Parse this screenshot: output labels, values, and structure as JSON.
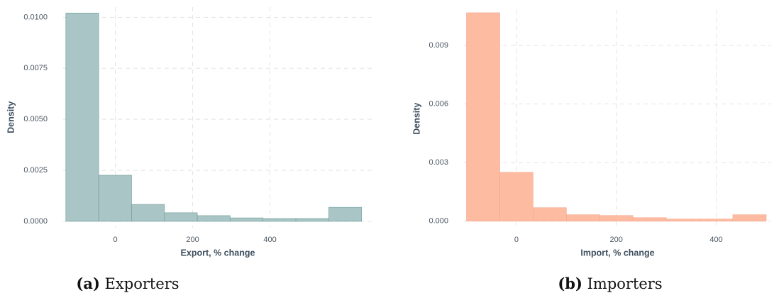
{
  "chart_data": [
    {
      "type": "histogram",
      "label": "(a)",
      "caption": "Exporters",
      "x_label": "Export, % change",
      "y_label": "Density",
      "bins": [
        -128,
        -43,
        42,
        127,
        212,
        297,
        382,
        467,
        552,
        637
      ],
      "values": [
        0.01021,
        0.00226,
        0.00083,
        0.00042,
        0.00028,
        0.00017,
        0.00014,
        0.00014,
        0.00069
      ],
      "color": "#a9c5c5",
      "edge_color": "#6f9a9a",
      "xlim": [
        -135,
        665
      ],
      "xticks": [
        0,
        200,
        400
      ],
      "ylim": [
        -0.0003,
        0.0105
      ],
      "yticks": [
        {
          "value": 0,
          "label": "0.0000"
        },
        0.0025,
        {
          "value": 0.005,
          "label": "0.0050"
        },
        0.0075,
        {
          "value": 0.01,
          "label": "0.0100"
        }
      ],
      "grid": true
    },
    {
      "type": "histogram",
      "label": "(b)",
      "caption": "Importers",
      "x_label": "Import, % change",
      "y_label": "Density",
      "bins": [
        -100,
        -33.3,
        33.3,
        100,
        166.7,
        233.3,
        300,
        366.7,
        433.3,
        500
      ],
      "values": [
        0.01067,
        0.0025,
        0.00069,
        0.00033,
        0.00029,
        0.00018,
        0.00011,
        0.00011,
        0.00033
      ],
      "color": "#fdbca2",
      "edge_color": "#f4a486",
      "xlim": [
        -105,
        510
      ],
      "xticks": [
        0,
        200,
        400
      ],
      "ylim": [
        -0.0003,
        0.0108
      ],
      "yticks": [
        {
          "value": 0,
          "label": "0.000"
        },
        0.003,
        0.006,
        0.009
      ],
      "grid": true
    }
  ]
}
